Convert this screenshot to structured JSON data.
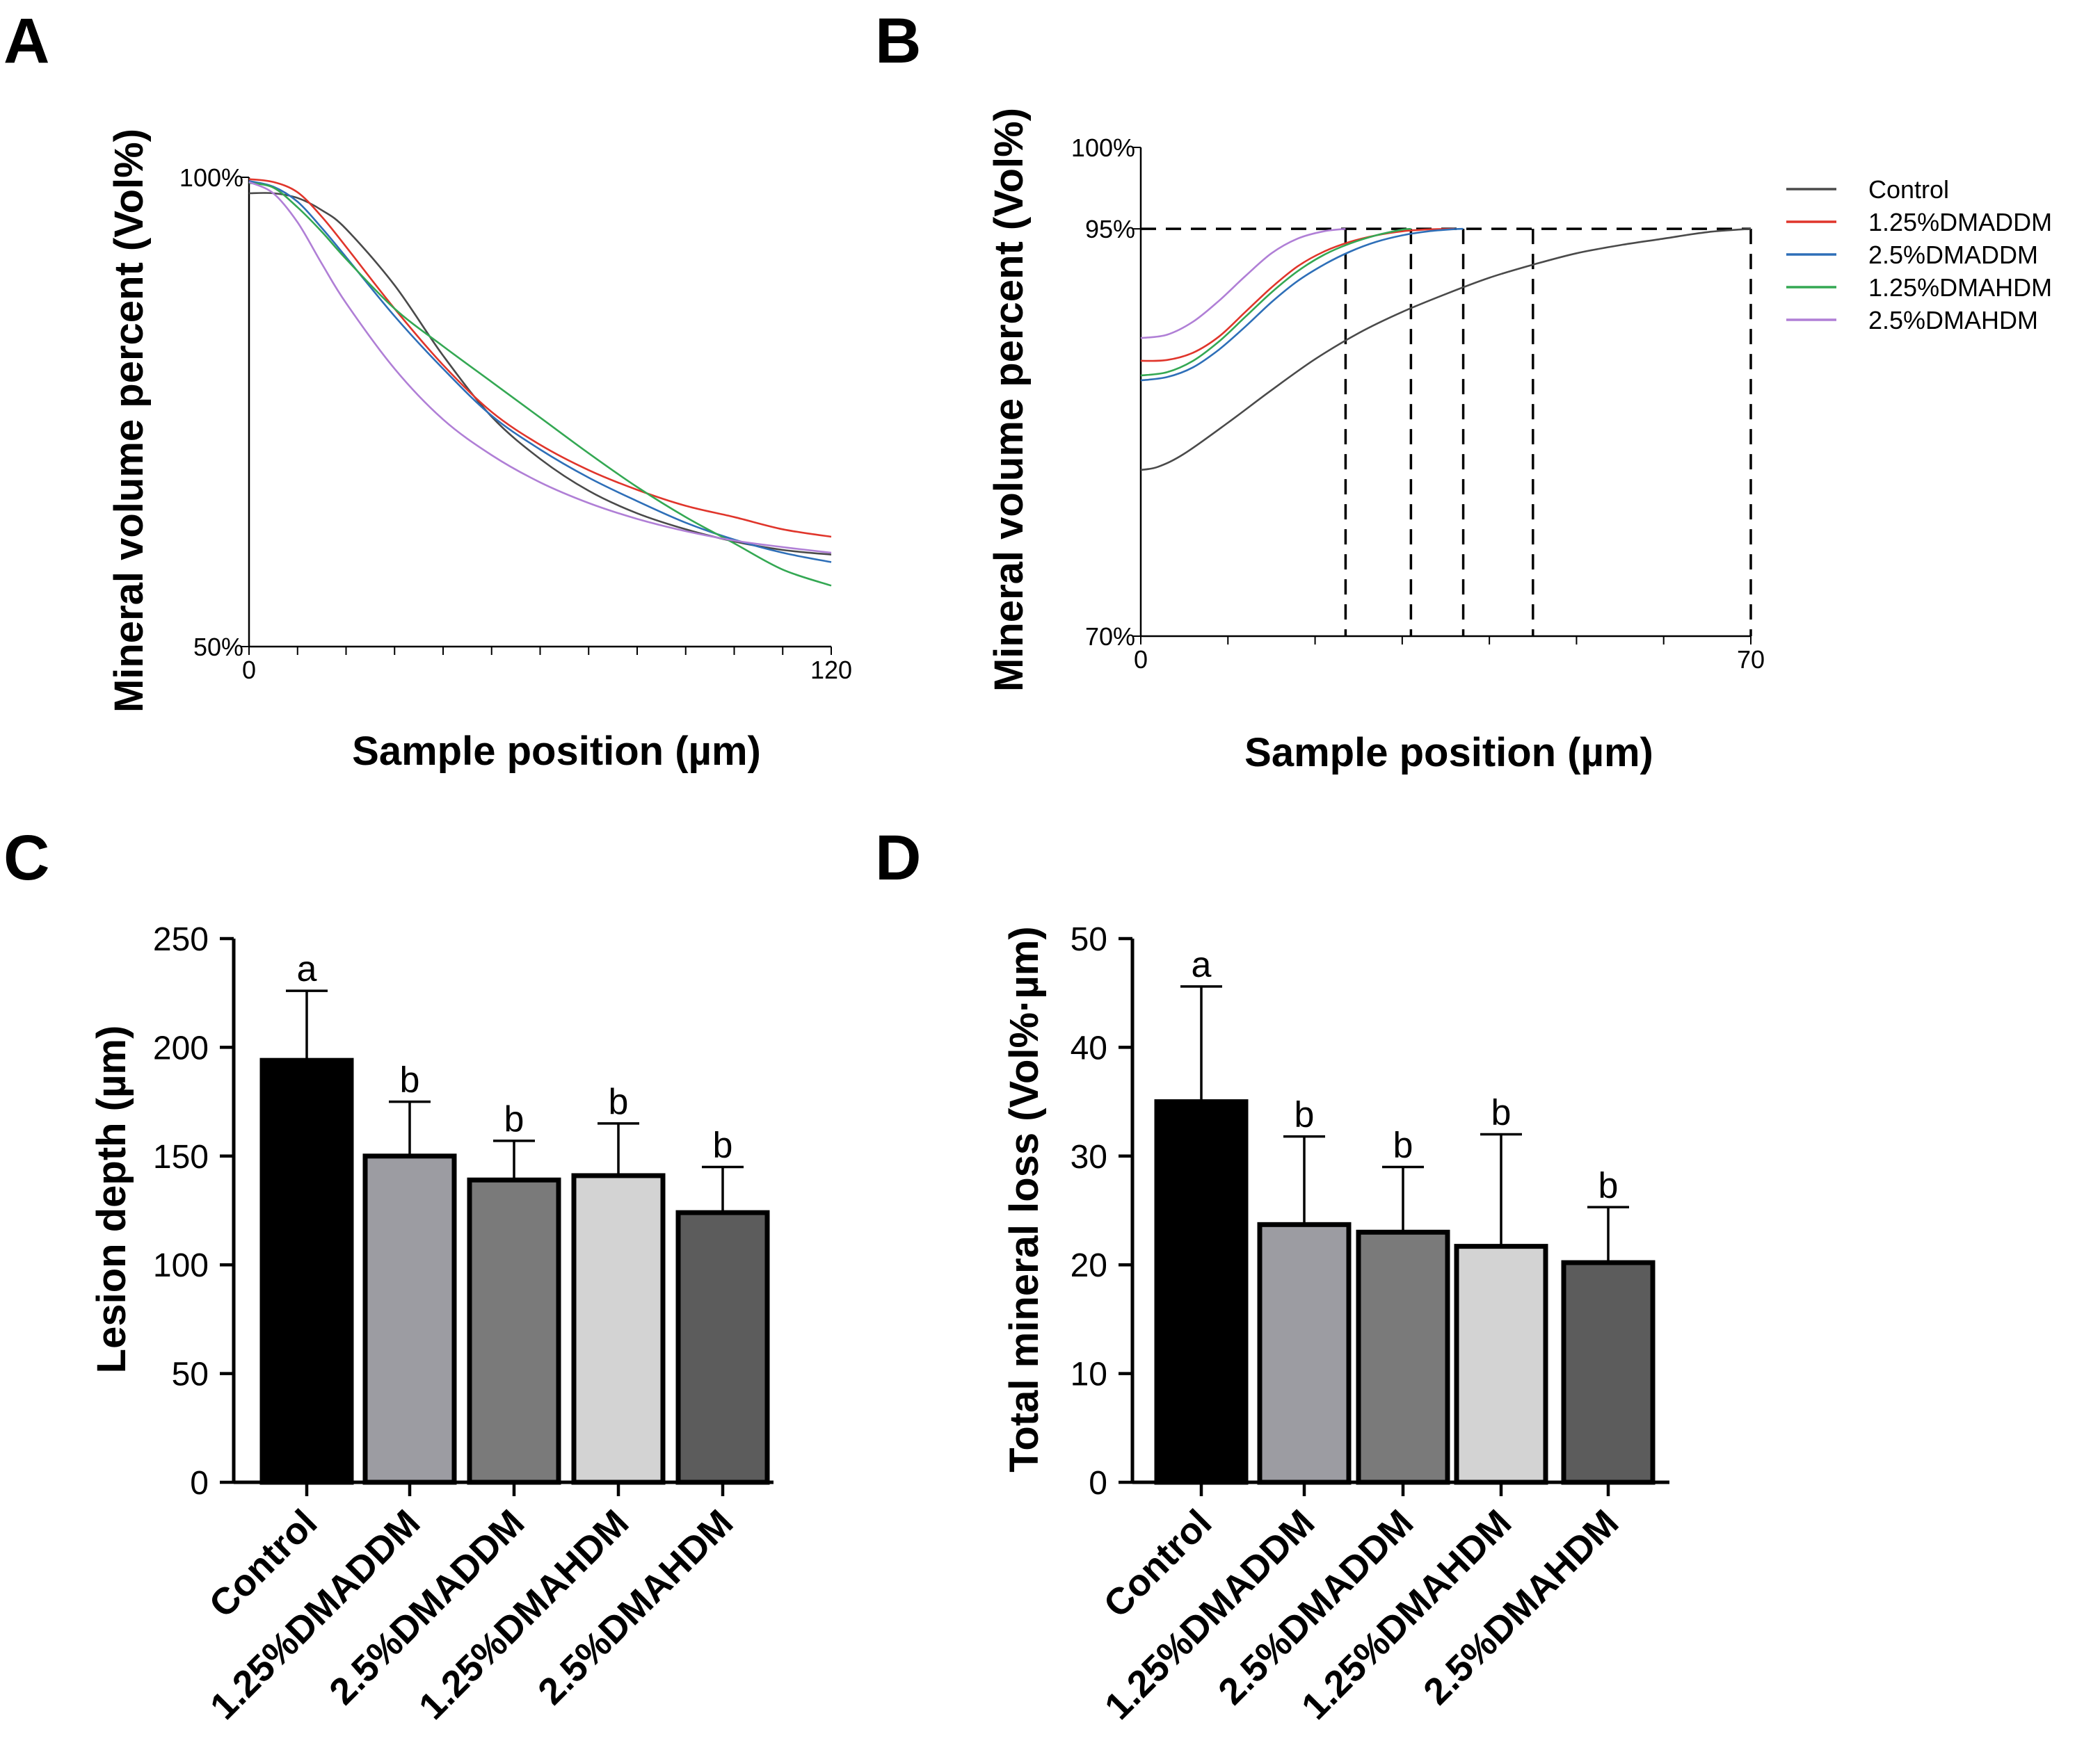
{
  "chart_data": [
    {
      "panel": "A",
      "type": "line",
      "title": "",
      "xlabel": "Sample position (µm)",
      "ylabel": "Mineral volume percent (Vol%)",
      "xlim": [
        0,
        120
      ],
      "ylim": [
        50,
        100
      ],
      "xticks": [
        0,
        10,
        20,
        30,
        40,
        50,
        60,
        70,
        80,
        90,
        100,
        110,
        120
      ],
      "xtick_labels": [
        {
          "value": 0,
          "label": "0"
        },
        {
          "value": 120,
          "label": "120"
        }
      ],
      "ytick_labels": [
        {
          "value": 50,
          "label": "50%"
        },
        {
          "value": 100,
          "label": "100%"
        }
      ],
      "grid": false,
      "series": [
        {
          "name": "Control",
          "color": "#4a4a4a",
          "x": [
            0,
            5,
            10,
            15,
            20,
            30,
            40,
            50,
            60,
            70,
            80,
            90,
            100,
            110,
            120
          ],
          "y": [
            98.3,
            98.3,
            97.8,
            96.5,
            94.5,
            88.5,
            81.0,
            74.5,
            70.0,
            66.6,
            64.2,
            62.5,
            61.2,
            60.3,
            59.8
          ]
        },
        {
          "name": "1.25%DMADDM",
          "color": "#e0352b",
          "x": [
            0,
            5,
            10,
            15,
            20,
            30,
            40,
            50,
            60,
            70,
            80,
            90,
            100,
            110,
            120
          ],
          "y": [
            99.8,
            99.5,
            98.4,
            95.8,
            92.6,
            86.0,
            80.0,
            75.0,
            71.5,
            68.8,
            66.7,
            65.0,
            63.8,
            62.5,
            61.7
          ]
        },
        {
          "name": "2.5%DMADDM",
          "color": "#2e6fb8",
          "x": [
            0,
            5,
            10,
            15,
            20,
            30,
            40,
            50,
            60,
            70,
            80,
            90,
            100,
            110,
            120
          ],
          "y": [
            99.6,
            99.0,
            97.4,
            94.6,
            91.5,
            85.2,
            79.6,
            74.6,
            71.0,
            68.0,
            65.5,
            63.2,
            61.4,
            60.0,
            59.0
          ]
        },
        {
          "name": "1.25%DMAHDM",
          "color": "#34a853",
          "x": [
            0,
            5,
            10,
            15,
            20,
            30,
            40,
            50,
            60,
            70,
            80,
            90,
            100,
            110,
            120
          ],
          "y": [
            99.4,
            98.9,
            96.8,
            94.2,
            91.3,
            86.0,
            82.0,
            78.2,
            74.4,
            70.6,
            67.0,
            63.8,
            61.0,
            58.2,
            56.5
          ]
        },
        {
          "name": "2.5%DMAHDM",
          "color": "#b07fd6",
          "x": [
            0,
            5,
            10,
            15,
            20,
            30,
            40,
            50,
            60,
            70,
            80,
            90,
            100,
            110,
            120
          ],
          "y": [
            99.5,
            98.3,
            95.2,
            90.8,
            86.6,
            79.6,
            74.2,
            70.4,
            67.5,
            65.3,
            63.6,
            62.3,
            61.3,
            60.6,
            60.0
          ]
        }
      ]
    },
    {
      "panel": "B",
      "type": "line",
      "title": "",
      "xlabel": "Sample position (µm)",
      "ylabel": "Mineral volume percent (Vol%)",
      "xlim": [
        0,
        70
      ],
      "ylim": [
        70,
        100
      ],
      "xticks": [
        0,
        10,
        20,
        30,
        40,
        50,
        60,
        70
      ],
      "xtick_labels": [
        {
          "value": 0,
          "label": "0"
        },
        {
          "value": 70,
          "label": "70"
        }
      ],
      "ytick_labels": [
        {
          "value": 70,
          "label": "70%"
        },
        {
          "value": 95,
          "label": "95%"
        },
        {
          "value": 100,
          "label": "100%"
        }
      ],
      "grid": false,
      "reference_line": {
        "y": 95,
        "style": "dashed"
      },
      "drop_lines_x": [
        23.5,
        31,
        37,
        45,
        70
      ],
      "legend": "right",
      "series": [
        {
          "name": "Control",
          "color": "#4a4a4a",
          "x": [
            0,
            2,
            5,
            10,
            15,
            20,
            25,
            30,
            35,
            40,
            45,
            50,
            55,
            60,
            65,
            70
          ],
          "y": [
            80.2,
            80.4,
            81.2,
            83.1,
            85.1,
            87.0,
            88.6,
            89.9,
            91.0,
            92.0,
            92.8,
            93.5,
            94.0,
            94.4,
            94.8,
            95.0
          ]
        },
        {
          "name": "1.25%DMADDM",
          "color": "#e0352b",
          "x": [
            0,
            3,
            6,
            9,
            12,
            15,
            18,
            21,
            24,
            27,
            30,
            33,
            36
          ],
          "y": [
            86.9,
            86.95,
            87.4,
            88.4,
            89.9,
            91.4,
            92.7,
            93.6,
            94.2,
            94.6,
            94.85,
            94.97,
            95.0
          ]
        },
        {
          "name": "2.5%DMADDM",
          "color": "#2e6fb8",
          "x": [
            0,
            3,
            6,
            9,
            12,
            15,
            18,
            21,
            24,
            27,
            30,
            33,
            36,
            37
          ],
          "y": [
            85.7,
            85.9,
            86.5,
            87.6,
            89.0,
            90.5,
            91.8,
            92.8,
            93.6,
            94.2,
            94.6,
            94.85,
            94.98,
            95.0
          ]
        },
        {
          "name": "1.25%DMAHDM",
          "color": "#34a853",
          "x": [
            0,
            3,
            6,
            9,
            12,
            15,
            18,
            21,
            24,
            27,
            30,
            31
          ],
          "y": [
            86.0,
            86.2,
            86.9,
            88.1,
            89.6,
            91.1,
            92.4,
            93.4,
            94.1,
            94.6,
            94.95,
            95.0
          ]
        },
        {
          "name": "2.5%DMAHDM",
          "color": "#b07fd6",
          "x": [
            0,
            3,
            6,
            9,
            12,
            15,
            18,
            21,
            23.5
          ],
          "y": [
            88.3,
            88.5,
            89.3,
            90.6,
            92.1,
            93.5,
            94.4,
            94.85,
            95.0
          ]
        }
      ]
    },
    {
      "panel": "C",
      "type": "bar",
      "title": "",
      "xlabel": "",
      "ylabel": "Lesion depth (µm)",
      "ylim": [
        0,
        250
      ],
      "yticks": [
        0,
        50,
        100,
        150,
        200,
        250
      ],
      "categories": [
        "Control",
        "1.25%DMADDM",
        "2.5%DMADDM",
        "1.25%DMAHDM",
        "2.5%DMAHDM"
      ],
      "values": [
        194,
        150,
        139,
        141,
        124
      ],
      "errors": [
        32,
        25,
        18,
        24,
        21
      ],
      "letters": [
        "a",
        "b",
        "b",
        "b",
        "b"
      ],
      "bar_colors": [
        "#000000",
        "#9c9ca2",
        "#7a7a7a",
        "#d3d3d3",
        "#5c5c5c"
      ]
    },
    {
      "panel": "D",
      "type": "bar",
      "title": "",
      "xlabel": "",
      "ylabel": "Total mineral loss (Vol%·µm)",
      "ylim": [
        0,
        50
      ],
      "yticks": [
        0,
        10,
        20,
        30,
        40,
        50
      ],
      "categories": [
        "Control",
        "1.25%DMADDM",
        "2.5%DMADDM",
        "1.25%DMAHDM",
        "2.5%DMAHDM"
      ],
      "values": [
        35,
        23.7,
        23,
        21.7,
        20.2
      ],
      "errors": [
        10.6,
        8.1,
        6,
        10.3,
        5.1
      ],
      "letters": [
        "a",
        "b",
        "b",
        "b",
        "b"
      ],
      "bar_colors": [
        "#000000",
        "#9c9ca2",
        "#7a7a7a",
        "#d3d3d3",
        "#5c5c5c"
      ]
    }
  ]
}
